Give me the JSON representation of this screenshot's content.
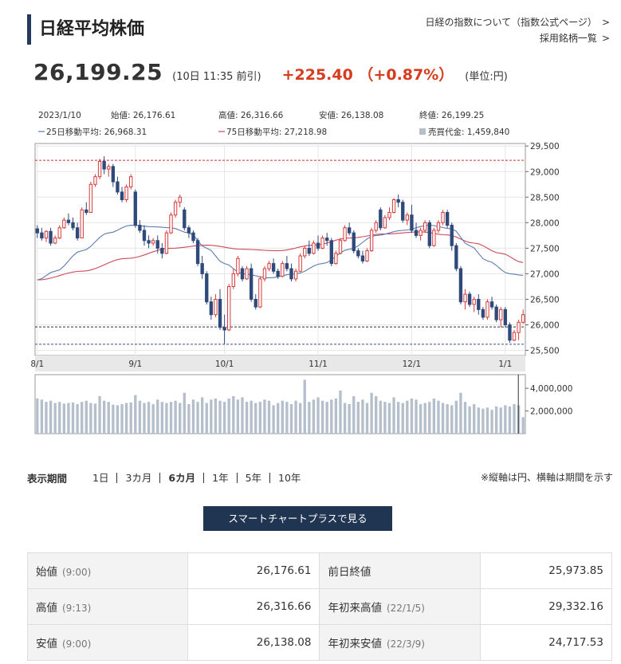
{
  "page": {
    "title": "日経平均株価"
  },
  "links": {
    "index_about": "日経の指数について（指数公式ページ）",
    "constituents": "採用銘柄一覧"
  },
  "price": {
    "value": "26,199.25",
    "time": "(10日 11:35 前引)",
    "change": "+225.40 （+0.87%）",
    "unit": "(単位:円)"
  },
  "chart_info": {
    "date": "2023/1/10",
    "open": "始値: 26,176.61",
    "high": "高値: 26,316.66",
    "low": "安値: 26,138.08",
    "close": "終値: 26,199.25",
    "ma25": "25日移動平均: 26,968.31",
    "ma75": "75日移動平均: 27,218.98",
    "volume": "売買代金: 1,459,840"
  },
  "colors": {
    "up": "#d63c3c",
    "down": "#2f4a7a",
    "ma25": "#5e7bb0",
    "ma75": "#cc4a5a",
    "volume": "#b5bfcc",
    "accent": "#d63c1d",
    "button": "#1f3552"
  },
  "chart_data": {
    "type": "candlestick",
    "price_axis": {
      "ticks": [
        "29,500",
        "29,000",
        "28,500",
        "28,000",
        "27,500",
        "27,000",
        "26,500",
        "26,000",
        "25,500"
      ],
      "min": 25400,
      "max": 29550
    },
    "volume_axis": {
      "ticks": [
        "4,000,000",
        "2,000,000"
      ],
      "min": 0,
      "max": 5200000
    },
    "x_labels": [
      {
        "label": "8/1",
        "index": 0
      },
      {
        "label": "9/1",
        "index": 22
      },
      {
        "label": "10/1",
        "index": 42
      },
      {
        "label": "11/1",
        "index": 63
      },
      {
        "label": "12/1",
        "index": 84
      },
      {
        "label": "1/1",
        "index": 105
      }
    ],
    "reference_lines": [
      {
        "value": 29220,
        "color": "#cc3333"
      },
      {
        "value": 25960,
        "color": "#333333"
      },
      {
        "value": 25620,
        "color": "#3b4f8a"
      }
    ],
    "candles": [
      [
        27880,
        27950,
        27700,
        27800
      ],
      [
        27800,
        27900,
        27650,
        27700
      ],
      [
        27700,
        27850,
        27620,
        27830
      ],
      [
        27830,
        27900,
        27550,
        27600
      ],
      [
        27600,
        27750,
        27580,
        27700
      ],
      [
        27700,
        27950,
        27680,
        27900
      ],
      [
        27900,
        28100,
        27880,
        28050
      ],
      [
        28050,
        28180,
        27950,
        28000
      ],
      [
        28000,
        28100,
        27850,
        27900
      ],
      [
        27900,
        28000,
        27650,
        27700
      ],
      [
        27700,
        28300,
        27700,
        28250
      ],
      [
        28250,
        28400,
        28150,
        28200
      ],
      [
        28200,
        28800,
        28200,
        28750
      ],
      [
        28750,
        28950,
        28700,
        28900
      ],
      [
        28900,
        29250,
        28850,
        29200
      ],
      [
        29200,
        29300,
        28950,
        29050
      ],
      [
        29050,
        29150,
        28900,
        29100
      ],
      [
        29100,
        29150,
        28700,
        28800
      ],
      [
        28800,
        28900,
        28550,
        28600
      ],
      [
        28600,
        28700,
        28400,
        28450
      ],
      [
        28450,
        28750,
        28400,
        28700
      ],
      [
        28700,
        28950,
        28650,
        28900
      ],
      [
        28600,
        28650,
        27900,
        27950
      ],
      [
        27950,
        28050,
        27800,
        27850
      ],
      [
        27850,
        27950,
        27550,
        27650
      ],
      [
        27650,
        27750,
        27500,
        27600
      ],
      [
        27600,
        27700,
        27550,
        27650
      ],
      [
        27650,
        27750,
        27400,
        27500
      ],
      [
        27500,
        27600,
        27300,
        27400
      ],
      [
        27400,
        27850,
        27380,
        27800
      ],
      [
        27800,
        28200,
        27780,
        28150
      ],
      [
        28150,
        28450,
        28100,
        28400
      ],
      [
        28400,
        28550,
        28300,
        28500
      ],
      [
        28250,
        28300,
        27850,
        27900
      ],
      [
        27900,
        27950,
        27700,
        27800
      ],
      [
        27800,
        27850,
        27600,
        27650
      ],
      [
        27650,
        27700,
        27150,
        27200
      ],
      [
        27200,
        27350,
        26900,
        27000
      ],
      [
        27000,
        27050,
        26400,
        26450
      ],
      [
        26450,
        26550,
        26100,
        26200
      ],
      [
        26200,
        26600,
        26150,
        26500
      ],
      [
        26500,
        26700,
        25900,
        25950
      ],
      [
        25950,
        26200,
        25620,
        25900
      ],
      [
        25900,
        26800,
        25880,
        26750
      ],
      [
        26750,
        27100,
        26700,
        27000
      ],
      [
        27000,
        27350,
        26950,
        27300
      ],
      [
        27100,
        27150,
        26850,
        26900
      ],
      [
        26900,
        27150,
        26880,
        27100
      ],
      [
        27100,
        27200,
        26450,
        26500
      ],
      [
        26500,
        26600,
        26300,
        26350
      ],
      [
        26350,
        26950,
        26330,
        26900
      ],
      [
        26900,
        27150,
        26850,
        27100
      ],
      [
        27100,
        27250,
        27050,
        27200
      ],
      [
        27200,
        27300,
        27000,
        27050
      ],
      [
        27050,
        27100,
        26900,
        26950
      ],
      [
        26950,
        27250,
        26930,
        27200
      ],
      [
        27200,
        27350,
        27050,
        27100
      ],
      [
        27100,
        27200,
        26850,
        26900
      ],
      [
        26900,
        27100,
        26850,
        27050
      ],
      [
        27050,
        27400,
        27030,
        27350
      ],
      [
        27350,
        27550,
        27300,
        27500
      ],
      [
        27500,
        27650,
        27350,
        27400
      ],
      [
        27400,
        27650,
        27380,
        27600
      ],
      [
        27600,
        27750,
        27450,
        27500
      ],
      [
        27500,
        27750,
        27480,
        27700
      ],
      [
        27700,
        27800,
        27550,
        27650
      ],
      [
        27650,
        27700,
        27150,
        27200
      ],
      [
        27200,
        27450,
        27180,
        27400
      ],
      [
        27400,
        27700,
        27380,
        27650
      ],
      [
        27650,
        27950,
        27630,
        27900
      ],
      [
        27900,
        28000,
        27750,
        27800
      ],
      [
        27800,
        27850,
        27400,
        27450
      ],
      [
        27450,
        27500,
        27300,
        27350
      ],
      [
        27350,
        27450,
        27200,
        27250
      ],
      [
        27250,
        27500,
        27230,
        27450
      ],
      [
        27450,
        27900,
        27430,
        27850
      ],
      [
        27850,
        28050,
        27800,
        28000
      ],
      [
        28250,
        28300,
        27850,
        27900
      ],
      [
        27900,
        28150,
        27880,
        28100
      ],
      [
        28100,
        28300,
        28050,
        28200
      ],
      [
        28200,
        28480,
        28180,
        28450
      ],
      [
        28450,
        28550,
        28300,
        28400
      ],
      [
        28400,
        28450,
        28000,
        28050
      ],
      [
        28050,
        28200,
        27950,
        28150
      ],
      [
        28150,
        28350,
        27800,
        27850
      ],
      [
        27850,
        28000,
        27700,
        27750
      ],
      [
        27750,
        27900,
        27650,
        27850
      ],
      [
        27850,
        28050,
        27800,
        28000
      ],
      [
        28000,
        28050,
        27500,
        27550
      ],
      [
        27550,
        27900,
        27530,
        27850
      ],
      [
        27850,
        28050,
        27800,
        28000
      ],
      [
        28000,
        28250,
        27950,
        28200
      ],
      [
        28200,
        28250,
        27900,
        27950
      ],
      [
        27950,
        28000,
        27450,
        27550
      ],
      [
        27550,
        27600,
        27050,
        27100
      ],
      [
        27100,
        27150,
        26400,
        26450
      ],
      [
        26450,
        26700,
        26300,
        26600
      ],
      [
        26600,
        26650,
        26350,
        26400
      ],
      [
        26400,
        26550,
        26250,
        26500
      ],
      [
        26500,
        26600,
        26200,
        26300
      ],
      [
        26300,
        26350,
        26100,
        26150
      ],
      [
        26150,
        26500,
        26100,
        26450
      ],
      [
        26450,
        26550,
        26300,
        26350
      ],
      [
        26350,
        26400,
        26050,
        26100
      ],
      [
        26100,
        26350,
        25950,
        26300
      ],
      [
        26300,
        26350,
        25950,
        26000
      ],
      [
        26000,
        26050,
        25650,
        25700
      ],
      [
        25700,
        25900,
        25680,
        25850
      ],
      [
        25850,
        26100,
        25700,
        26050
      ],
      [
        26050,
        26300,
        26020,
        26200
      ]
    ],
    "ma25_anchors": [
      [
        0,
        26880
      ],
      [
        4,
        27050
      ],
      [
        10,
        27450
      ],
      [
        16,
        27800
      ],
      [
        21,
        27950
      ],
      [
        26,
        27920
      ],
      [
        30,
        27900
      ],
      [
        34,
        27800
      ],
      [
        38,
        27500
      ],
      [
        42,
        27200
      ],
      [
        46,
        27000
      ],
      [
        52,
        26920
      ],
      [
        58,
        27000
      ],
      [
        64,
        27200
      ],
      [
        70,
        27480
      ],
      [
        76,
        27750
      ],
      [
        82,
        27850
      ],
      [
        88,
        27950
      ],
      [
        93,
        27880
      ],
      [
        97,
        27550
      ],
      [
        101,
        27250
      ],
      [
        106,
        27000
      ],
      [
        109,
        26970
      ]
    ],
    "ma75_anchors": [
      [
        0,
        26880
      ],
      [
        10,
        27050
      ],
      [
        20,
        27300
      ],
      [
        30,
        27500
      ],
      [
        38,
        27560
      ],
      [
        46,
        27480
      ],
      [
        54,
        27450
      ],
      [
        62,
        27560
      ],
      [
        70,
        27700
      ],
      [
        78,
        27780
      ],
      [
        86,
        27820
      ],
      [
        92,
        27760
      ],
      [
        98,
        27600
      ],
      [
        104,
        27400
      ],
      [
        109,
        27220
      ]
    ],
    "volumes": [
      3100000,
      3000000,
      2800000,
      2900000,
      2700000,
      2800000,
      2650000,
      2700000,
      2750000,
      2600000,
      2800000,
      2900000,
      2700000,
      2650000,
      3300000,
      2900000,
      2800000,
      2550000,
      2500000,
      2600000,
      2700000,
      2750000,
      3400000,
      2900000,
      2700000,
      2800000,
      2600000,
      3000000,
      2800000,
      2700000,
      2800000,
      2900000,
      2700000,
      3600000,
      2600000,
      3000000,
      2800000,
      3200000,
      2700000,
      3000000,
      3100000,
      2900000,
      2800000,
      3100000,
      3300000,
      3000000,
      3200000,
      2800000,
      2900000,
      2700000,
      2800000,
      3000000,
      2900000,
      2500000,
      2700000,
      2900000,
      2800000,
      2600000,
      2900000,
      2700000,
      4750000,
      2800000,
      3000000,
      3200000,
      2900000,
      2800000,
      3000000,
      3100000,
      3800000,
      2700000,
      2600000,
      3300000,
      2800000,
      3000000,
      2700000,
      3600000,
      3300000,
      2900000,
      2800000,
      2700000,
      3200000,
      2800000,
      2700000,
      2900000,
      3100000,
      3000000,
      2600000,
      2700000,
      2800000,
      3100000,
      2900000,
      2700000,
      2600000,
      2500000,
      2900000,
      3600000,
      2800000,
      2400000,
      2600000,
      2300000,
      2200000,
      2300000,
      2100000,
      2400000,
      2300000,
      2500000,
      2400000,
      2600000,
      2500000,
      1450000
    ]
  },
  "period": {
    "label": "表示期間",
    "items": [
      "1日",
      "3カ月",
      "6カ月",
      "1年",
      "5年",
      "10年"
    ],
    "active_index": 2,
    "note": "※縦軸は円、横軸は期間を示す"
  },
  "button": {
    "label": "スマートチャートプラスで見る"
  },
  "table": {
    "rows": [
      [
        {
          "label": "始値",
          "sub": "(9:00)",
          "value": "26,176.61"
        },
        {
          "label": "前日終値",
          "sub": "",
          "value": "25,973.85"
        }
      ],
      [
        {
          "label": "高値",
          "sub": "(9:13)",
          "value": "26,316.66"
        },
        {
          "label": "年初来高値",
          "sub": "(22/1/5)",
          "value": "29,332.16"
        }
      ],
      [
        {
          "label": "安値",
          "sub": "(9:00)",
          "value": "26,138.08"
        },
        {
          "label": "年初来安値",
          "sub": "(22/3/9)",
          "value": "24,717.53"
        }
      ]
    ]
  }
}
